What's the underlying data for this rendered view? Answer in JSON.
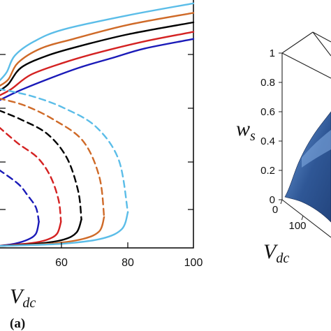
{
  "chart_data": [
    {
      "panel": "a",
      "type": "line",
      "title": "",
      "panel_label": "(a)",
      "xlabel": {
        "main": "V",
        "sub": "dc"
      },
      "ylabel": "",
      "xlim": [
        40,
        100
      ],
      "ylim": [
        0,
        1.05
      ],
      "x_ticks": [
        "60",
        "80",
        "100"
      ],
      "grid": false,
      "legend": "none",
      "series": [
        {
          "color": "#1a1ab8",
          "stable_upper": [
            [
              40,
              0.62
            ],
            [
              46,
              0.66
            ],
            [
              55,
              0.71
            ],
            [
              65,
              0.76
            ],
            [
              75,
              0.8
            ],
            [
              85,
              0.84
            ],
            [
              100,
              0.88
            ]
          ],
          "unstable": [
            [
              40,
              0.33
            ],
            [
              46,
              0.27
            ],
            [
              49,
              0.22
            ],
            [
              51.5,
              0.17
            ],
            [
              52.4,
              0.11
            ]
          ],
          "stable_lower": [
            [
              52.4,
              0.11
            ],
            [
              51.5,
              0.06
            ],
            [
              49,
              0.035
            ],
            [
              45,
              0.018
            ],
            [
              40,
              0.008
            ]
          ]
        },
        {
          "color": "#d42222",
          "stable_upper": [
            [
              40,
              0.64
            ],
            [
              44,
              0.67
            ],
            [
              50,
              0.73
            ],
            [
              60,
              0.78
            ],
            [
              70,
              0.82
            ],
            [
              85,
              0.87
            ],
            [
              100,
              0.91
            ]
          ],
          "unstable": [
            [
              40,
              0.51
            ],
            [
              46,
              0.44
            ],
            [
              52,
              0.38
            ],
            [
              56,
              0.3
            ],
            [
              58.5,
              0.2
            ],
            [
              59.2,
              0.11
            ]
          ],
          "stable_lower": [
            [
              59.2,
              0.11
            ],
            [
              58,
              0.06
            ],
            [
              55,
              0.035
            ],
            [
              50,
              0.02
            ],
            [
              40,
              0.008
            ]
          ]
        },
        {
          "color": "#000000",
          "stable_upper": [
            [
              40,
              0.66
            ],
            [
              43,
              0.69
            ],
            [
              47,
              0.76
            ],
            [
              55,
              0.81
            ],
            [
              65,
              0.85
            ],
            [
              80,
              0.9
            ],
            [
              100,
              0.95
            ]
          ],
          "unstable": [
            [
              40,
              0.58
            ],
            [
              47,
              0.54
            ],
            [
              55,
              0.48
            ],
            [
              61,
              0.38
            ],
            [
              64.5,
              0.24
            ],
            [
              65.5,
              0.12
            ]
          ],
          "stable_lower": [
            [
              65.5,
              0.12
            ],
            [
              64,
              0.065
            ],
            [
              60,
              0.035
            ],
            [
              52,
              0.018
            ],
            [
              40,
              0.008
            ]
          ]
        },
        {
          "color": "#cf6a28",
          "stable_upper": [
            [
              40,
              0.68
            ],
            [
              43,
              0.71
            ],
            [
              46,
              0.78
            ],
            [
              53,
              0.84
            ],
            [
              63,
              0.88
            ],
            [
              80,
              0.94
            ],
            [
              100,
              0.99
            ]
          ],
          "unstable": [
            [
              40,
              0.63
            ],
            [
              48,
              0.6
            ],
            [
              57,
              0.54
            ],
            [
              66,
              0.45
            ],
            [
              71,
              0.3
            ],
            [
              72.5,
              0.13
            ]
          ],
          "stable_lower": [
            [
              72.5,
              0.13
            ],
            [
              71,
              0.07
            ],
            [
              66,
              0.038
            ],
            [
              56,
              0.018
            ],
            [
              40,
              0.008
            ]
          ]
        },
        {
          "color": "#5bbde8",
          "stable_upper": [
            [
              40,
              0.7
            ],
            [
              42.5,
              0.74
            ],
            [
              45,
              0.81
            ],
            [
              51,
              0.87
            ],
            [
              60,
              0.92
            ],
            [
              80,
              0.98
            ],
            [
              100,
              1.03
            ]
          ],
          "unstable": [
            [
              40,
              0.67
            ],
            [
              50,
              0.64
            ],
            [
              60,
              0.59
            ],
            [
              70,
              0.51
            ],
            [
              77,
              0.37
            ],
            [
              79.8,
              0.15
            ]
          ],
          "stable_lower": [
            [
              79.8,
              0.15
            ],
            [
              78,
              0.08
            ],
            [
              72,
              0.04
            ],
            [
              60,
              0.018
            ],
            [
              40,
              0.008
            ]
          ]
        }
      ]
    },
    {
      "panel": "b",
      "type": "surface3d",
      "zlabel": {
        "main": "w",
        "sub": "s"
      },
      "xlabel": {
        "main": "V",
        "sub": "dc"
      },
      "z_ticks": [
        "0",
        "0.2",
        "0.4",
        "0.6",
        "0.8",
        "1"
      ],
      "x_ticks": [
        "0",
        "100"
      ],
      "colors": {
        "surface": "#23457e",
        "highlight": "#6f9fdc"
      }
    }
  ]
}
